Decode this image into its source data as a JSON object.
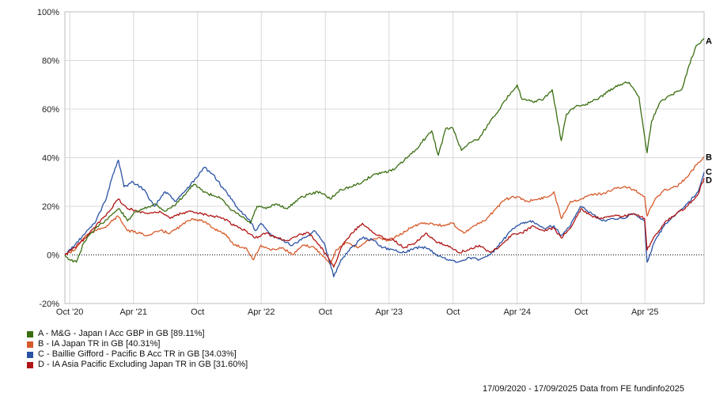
{
  "footer": "17/09/2020 - 17/09/2025 Data from FE fundinfo2025",
  "chart_data": {
    "type": "line",
    "ylim": [
      -20,
      100
    ],
    "yticks": [
      -20,
      0,
      20,
      40,
      60,
      80,
      100
    ],
    "ytick_labels": [
      "-20%",
      "0%",
      "20%",
      "40%",
      "60%",
      "80%",
      "100%"
    ],
    "xlim": [
      "2020-09-17",
      "2025-09-17"
    ],
    "xticks": [
      {
        "date": "2020-10-01",
        "label": "Oct '20"
      },
      {
        "date": "2021-04-01",
        "label": "Apr '21"
      },
      {
        "date": "2021-10-01",
        "label": "Oct"
      },
      {
        "date": "2022-04-01",
        "label": "Apr '22"
      },
      {
        "date": "2022-10-01",
        "label": "Oct"
      },
      {
        "date": "2023-04-01",
        "label": "Apr '23"
      },
      {
        "date": "2023-10-01",
        "label": "Oct"
      },
      {
        "date": "2024-04-01",
        "label": "Apr '24"
      },
      {
        "date": "2024-10-01",
        "label": "Oct"
      },
      {
        "date": "2025-04-01",
        "label": "Apr '25"
      }
    ],
    "grid": true,
    "legend_position": "bottom-left",
    "series": [
      {
        "letter": "A",
        "legend": "A - M&G - Japan I Acc GBP in GB [89.11%]",
        "color": "#3a6e12",
        "points": [
          [
            "2020-09-17",
            0
          ],
          [
            "2020-10-01",
            -2
          ],
          [
            "2020-10-20",
            -3
          ],
          [
            "2020-11-10",
            5
          ],
          [
            "2020-12-01",
            9
          ],
          [
            "2021-01-01",
            13
          ],
          [
            "2021-02-01",
            17
          ],
          [
            "2021-02-20",
            19
          ],
          [
            "2021-03-15",
            14
          ],
          [
            "2021-04-01",
            17
          ],
          [
            "2021-05-01",
            19
          ],
          [
            "2021-06-01",
            21
          ],
          [
            "2021-07-01",
            18
          ],
          [
            "2021-08-01",
            21
          ],
          [
            "2021-09-01",
            26
          ],
          [
            "2021-09-20",
            29
          ],
          [
            "2021-10-10",
            27
          ],
          [
            "2021-11-01",
            25
          ],
          [
            "2021-12-01",
            24
          ],
          [
            "2022-01-01",
            19
          ],
          [
            "2022-02-01",
            16
          ],
          [
            "2022-03-01",
            13
          ],
          [
            "2022-03-20",
            20
          ],
          [
            "2022-04-15",
            19
          ],
          [
            "2022-05-15",
            21
          ],
          [
            "2022-06-15",
            19
          ],
          [
            "2022-07-15",
            23
          ],
          [
            "2022-08-15",
            25
          ],
          [
            "2022-09-15",
            26
          ],
          [
            "2022-10-15",
            23
          ],
          [
            "2022-11-15",
            27
          ],
          [
            "2022-12-15",
            28
          ],
          [
            "2023-01-15",
            30
          ],
          [
            "2023-02-15",
            33
          ],
          [
            "2023-03-15",
            34
          ],
          [
            "2023-04-15",
            35
          ],
          [
            "2023-05-15",
            39
          ],
          [
            "2023-06-15",
            43
          ],
          [
            "2023-07-01",
            46
          ],
          [
            "2023-08-01",
            51
          ],
          [
            "2023-08-20",
            41
          ],
          [
            "2023-09-10",
            52
          ],
          [
            "2023-10-01",
            52
          ],
          [
            "2023-10-25",
            43
          ],
          [
            "2023-11-15",
            46
          ],
          [
            "2023-12-15",
            48
          ],
          [
            "2024-01-15",
            55
          ],
          [
            "2024-02-15",
            61
          ],
          [
            "2024-03-15",
            67
          ],
          [
            "2024-04-01",
            70
          ],
          [
            "2024-04-15",
            64
          ],
          [
            "2024-05-15",
            63
          ],
          [
            "2024-06-15",
            64
          ],
          [
            "2024-07-10",
            68
          ],
          [
            "2024-08-05",
            47
          ],
          [
            "2024-08-20",
            58
          ],
          [
            "2024-09-15",
            61
          ],
          [
            "2024-10-15",
            62
          ],
          [
            "2024-11-15",
            64
          ],
          [
            "2024-12-15",
            67
          ],
          [
            "2025-01-15",
            70
          ],
          [
            "2025-02-15",
            71
          ],
          [
            "2025-03-15",
            65
          ],
          [
            "2025-04-07",
            42
          ],
          [
            "2025-04-20",
            55
          ],
          [
            "2025-05-15",
            63
          ],
          [
            "2025-06-15",
            66
          ],
          [
            "2025-07-15",
            68
          ],
          [
            "2025-08-05",
            78
          ],
          [
            "2025-08-25",
            86
          ],
          [
            "2025-09-17",
            89.11
          ]
        ]
      },
      {
        "letter": "B",
        "legend": "B - IA Japan TR in GB [40.31%]",
        "color": "#d65a2a",
        "points": [
          [
            "2020-09-17",
            0
          ],
          [
            "2020-10-15",
            2
          ],
          [
            "2020-11-15",
            8
          ],
          [
            "2020-12-15",
            10
          ],
          [
            "2021-01-15",
            12
          ],
          [
            "2021-02-15",
            16
          ],
          [
            "2021-03-15",
            10
          ],
          [
            "2021-04-15",
            9
          ],
          [
            "2021-05-15",
            8
          ],
          [
            "2021-06-15",
            10
          ],
          [
            "2021-07-15",
            9
          ],
          [
            "2021-08-15",
            12
          ],
          [
            "2021-09-15",
            15
          ],
          [
            "2021-10-15",
            14
          ],
          [
            "2021-11-15",
            11
          ],
          [
            "2021-12-15",
            9
          ],
          [
            "2022-01-15",
            4
          ],
          [
            "2022-02-15",
            3
          ],
          [
            "2022-03-10",
            -2
          ],
          [
            "2022-03-31",
            4
          ],
          [
            "2022-04-30",
            2
          ],
          [
            "2022-05-31",
            3
          ],
          [
            "2022-06-30",
            0
          ],
          [
            "2022-07-31",
            4
          ],
          [
            "2022-08-31",
            3
          ],
          [
            "2022-09-30",
            -1
          ],
          [
            "2022-10-15",
            -4
          ],
          [
            "2022-10-31",
            2
          ],
          [
            "2022-11-30",
            5
          ],
          [
            "2022-12-31",
            3
          ],
          [
            "2023-01-31",
            6
          ],
          [
            "2023-02-28",
            7
          ],
          [
            "2023-03-31",
            6
          ],
          [
            "2023-04-30",
            8
          ],
          [
            "2023-05-31",
            11
          ],
          [
            "2023-06-30",
            13
          ],
          [
            "2023-07-31",
            13
          ],
          [
            "2023-08-31",
            12
          ],
          [
            "2023-09-30",
            13
          ],
          [
            "2023-10-31",
            9
          ],
          [
            "2023-11-30",
            12
          ],
          [
            "2023-12-31",
            14
          ],
          [
            "2024-01-31",
            19
          ],
          [
            "2024-02-29",
            23
          ],
          [
            "2024-03-31",
            24
          ],
          [
            "2024-04-30",
            22
          ],
          [
            "2024-05-31",
            23
          ],
          [
            "2024-06-30",
            24
          ],
          [
            "2024-07-15",
            26
          ],
          [
            "2024-08-05",
            15
          ],
          [
            "2024-08-31",
            22
          ],
          [
            "2024-09-30",
            23
          ],
          [
            "2024-10-31",
            25
          ],
          [
            "2024-11-30",
            25
          ],
          [
            "2024-12-31",
            27
          ],
          [
            "2025-01-31",
            28
          ],
          [
            "2025-02-28",
            27
          ],
          [
            "2025-03-31",
            24
          ],
          [
            "2025-04-07",
            16
          ],
          [
            "2025-04-30",
            23
          ],
          [
            "2025-05-31",
            27
          ],
          [
            "2025-06-30",
            28
          ],
          [
            "2025-07-31",
            32
          ],
          [
            "2025-08-31",
            38
          ],
          [
            "2025-09-17",
            40.31
          ]
        ]
      },
      {
        "letter": "C",
        "legend": "C - Baillie Gifford - Pacific B Acc TR in GB [34.03%]",
        "color": "#2a52a4",
        "points": [
          [
            "2020-09-17",
            0
          ],
          [
            "2020-10-15",
            4
          ],
          [
            "2020-11-15",
            9
          ],
          [
            "2020-12-15",
            14
          ],
          [
            "2021-01-15",
            24
          ],
          [
            "2021-02-01",
            33
          ],
          [
            "2021-02-17",
            39
          ],
          [
            "2021-03-05",
            28
          ],
          [
            "2021-03-31",
            30
          ],
          [
            "2021-04-30",
            27
          ],
          [
            "2021-05-31",
            20
          ],
          [
            "2021-06-30",
            26
          ],
          [
            "2021-07-31",
            22
          ],
          [
            "2021-08-31",
            27
          ],
          [
            "2021-09-30",
            32
          ],
          [
            "2021-10-20",
            36
          ],
          [
            "2021-11-15",
            33
          ],
          [
            "2021-12-15",
            27
          ],
          [
            "2022-01-31",
            18
          ],
          [
            "2022-02-28",
            14
          ],
          [
            "2022-03-15",
            10
          ],
          [
            "2022-03-31",
            13
          ],
          [
            "2022-04-30",
            8
          ],
          [
            "2022-05-31",
            6
          ],
          [
            "2022-06-30",
            4
          ],
          [
            "2022-07-31",
            7
          ],
          [
            "2022-08-31",
            10
          ],
          [
            "2022-09-30",
            4
          ],
          [
            "2022-10-25",
            -9
          ],
          [
            "2022-11-15",
            -2
          ],
          [
            "2022-12-15",
            3
          ],
          [
            "2023-01-15",
            7
          ],
          [
            "2023-02-15",
            6
          ],
          [
            "2023-03-15",
            3
          ],
          [
            "2023-04-15",
            2
          ],
          [
            "2023-05-15",
            1
          ],
          [
            "2023-06-15",
            3
          ],
          [
            "2023-07-15",
            3
          ],
          [
            "2023-08-15",
            0
          ],
          [
            "2023-09-15",
            -2
          ],
          [
            "2023-10-15",
            -3
          ],
          [
            "2023-11-15",
            -1
          ],
          [
            "2023-12-15",
            -2
          ],
          [
            "2024-01-15",
            0
          ],
          [
            "2024-02-15",
            5
          ],
          [
            "2024-03-15",
            10
          ],
          [
            "2024-04-15",
            13
          ],
          [
            "2024-05-15",
            14
          ],
          [
            "2024-06-15",
            11
          ],
          [
            "2024-07-15",
            12
          ],
          [
            "2024-08-05",
            8
          ],
          [
            "2024-08-31",
            12
          ],
          [
            "2024-09-30",
            20
          ],
          [
            "2024-10-31",
            17
          ],
          [
            "2024-11-30",
            14
          ],
          [
            "2024-12-31",
            15
          ],
          [
            "2025-01-31",
            15
          ],
          [
            "2025-02-28",
            17
          ],
          [
            "2025-03-31",
            14
          ],
          [
            "2025-04-07",
            -3
          ],
          [
            "2025-04-30",
            6
          ],
          [
            "2025-05-31",
            13
          ],
          [
            "2025-06-30",
            17
          ],
          [
            "2025-07-31",
            21
          ],
          [
            "2025-08-31",
            26
          ],
          [
            "2025-09-17",
            34.03
          ]
        ]
      },
      {
        "letter": "D",
        "legend": "D - IA Asia Pacific Excluding Japan TR in GB [31.60%]",
        "color": "#b01515",
        "points": [
          [
            "2020-09-17",
            0
          ],
          [
            "2020-10-15",
            3
          ],
          [
            "2020-11-15",
            7
          ],
          [
            "2020-12-15",
            12
          ],
          [
            "2021-01-15",
            17
          ],
          [
            "2021-02-17",
            23
          ],
          [
            "2021-03-15",
            19
          ],
          [
            "2021-04-15",
            18
          ],
          [
            "2021-05-15",
            17
          ],
          [
            "2021-06-15",
            18
          ],
          [
            "2021-07-15",
            15
          ],
          [
            "2021-08-15",
            17
          ],
          [
            "2021-09-15",
            18
          ],
          [
            "2021-10-15",
            17
          ],
          [
            "2021-11-15",
            16
          ],
          [
            "2021-12-15",
            15
          ],
          [
            "2022-01-15",
            12
          ],
          [
            "2022-02-15",
            10
          ],
          [
            "2022-03-15",
            7
          ],
          [
            "2022-04-15",
            9
          ],
          [
            "2022-05-15",
            7
          ],
          [
            "2022-06-15",
            6
          ],
          [
            "2022-07-15",
            8
          ],
          [
            "2022-08-15",
            9
          ],
          [
            "2022-09-15",
            4
          ],
          [
            "2022-10-25",
            -5
          ],
          [
            "2022-11-15",
            3
          ],
          [
            "2022-12-15",
            9
          ],
          [
            "2023-01-15",
            13
          ],
          [
            "2023-02-15",
            9
          ],
          [
            "2023-03-15",
            7
          ],
          [
            "2023-04-15",
            6
          ],
          [
            "2023-05-15",
            3
          ],
          [
            "2023-06-15",
            5
          ],
          [
            "2023-07-15",
            9
          ],
          [
            "2023-08-15",
            5
          ],
          [
            "2023-09-15",
            4
          ],
          [
            "2023-10-15",
            1
          ],
          [
            "2023-11-15",
            2
          ],
          [
            "2023-12-15",
            4
          ],
          [
            "2024-01-15",
            1
          ],
          [
            "2024-02-15",
            4
          ],
          [
            "2024-03-15",
            8
          ],
          [
            "2024-04-15",
            9
          ],
          [
            "2024-05-15",
            12
          ],
          [
            "2024-06-15",
            10
          ],
          [
            "2024-07-15",
            11
          ],
          [
            "2024-08-05",
            7
          ],
          [
            "2024-08-31",
            11
          ],
          [
            "2024-09-30",
            19
          ],
          [
            "2024-10-31",
            16
          ],
          [
            "2024-11-30",
            15
          ],
          [
            "2024-12-31",
            16
          ],
          [
            "2025-01-31",
            16
          ],
          [
            "2025-02-28",
            17
          ],
          [
            "2025-03-31",
            15
          ],
          [
            "2025-04-07",
            2
          ],
          [
            "2025-04-30",
            8
          ],
          [
            "2025-05-31",
            14
          ],
          [
            "2025-06-30",
            17
          ],
          [
            "2025-07-31",
            20
          ],
          [
            "2025-08-31",
            25
          ],
          [
            "2025-09-17",
            31.6
          ]
        ]
      }
    ]
  }
}
